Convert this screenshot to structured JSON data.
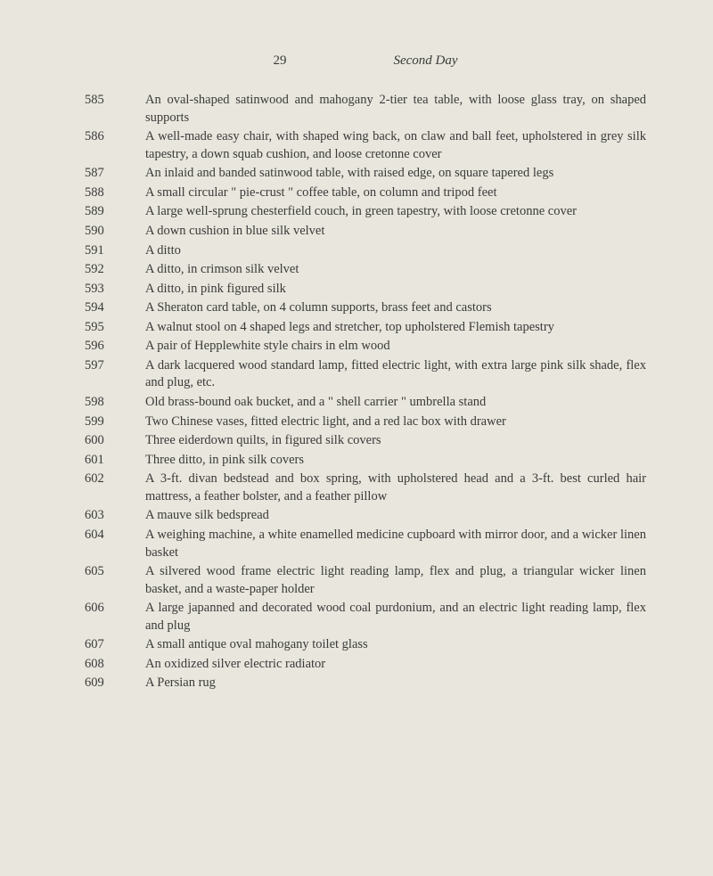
{
  "page_number": "29",
  "heading": "Second Day",
  "text_color": "#3a3a38",
  "background_color": "#e8e6dd",
  "entries": [
    {
      "lot": "585",
      "text": "An oval-shaped satinwood and mahogany 2-tier tea table, with loose glass tray, on shaped supports"
    },
    {
      "lot": "586",
      "text": "A well-made easy chair, with shaped wing back, on claw and ball feet, upholstered in grey silk tapestry, a down squab cushion, and loose cretonne cover"
    },
    {
      "lot": "587",
      "text": "An inlaid and banded satinwood table, with raised edge, on square tapered legs"
    },
    {
      "lot": "588",
      "text": "A small circular \" pie-crust \" coffee table, on column and tripod feet"
    },
    {
      "lot": "589",
      "text": "A large well-sprung chesterfield couch, in green tapestry, with loose cretonne cover"
    },
    {
      "lot": "590",
      "text": "A down cushion in blue silk velvet"
    },
    {
      "lot": "591",
      "text": "A ditto"
    },
    {
      "lot": "592",
      "text": "A ditto, in crimson silk velvet"
    },
    {
      "lot": "593",
      "text": "A ditto, in pink figured silk"
    },
    {
      "lot": "594",
      "text": "A Sheraton card table, on 4 column supports, brass feet and castors"
    },
    {
      "lot": "595",
      "text": "A walnut stool on 4 shaped legs and stretcher, top upholstered Flemish tapestry"
    },
    {
      "lot": "596",
      "text": "A pair of Hepplewhite style chairs in elm wood"
    },
    {
      "lot": "597",
      "text": "A dark lacquered wood standard lamp, fitted electric light, with extra large pink silk shade, flex and plug, etc."
    },
    {
      "lot": "598",
      "text": "Old brass-bound oak bucket, and a \" shell carrier \" umbrella stand"
    },
    {
      "lot": "599",
      "text": "Two Chinese vases, fitted electric light, and a red lac box with drawer"
    },
    {
      "lot": "600",
      "text": "Three eiderdown quilts, in figured silk covers"
    },
    {
      "lot": "601",
      "text": "Three ditto, in pink silk covers"
    },
    {
      "lot": "602",
      "text": "A 3-ft. divan bedstead and box spring, with upholstered head and a 3-ft. best curled hair mattress, a feather bolster, and a feather pillow"
    },
    {
      "lot": "603",
      "text": "A mauve silk bedspread"
    },
    {
      "lot": "604",
      "text": "A weighing machine, a white enamelled medicine cupboard with mirror door, and a wicker linen basket"
    },
    {
      "lot": "605",
      "text": "A silvered wood frame electric light reading lamp, flex and plug, a triangular wicker linen basket, and a waste-paper holder"
    },
    {
      "lot": "606",
      "text": "A large japanned and decorated wood coal purdonium, and an electric light reading lamp, flex and plug"
    },
    {
      "lot": "607",
      "text": "A small antique oval mahogany toilet glass"
    },
    {
      "lot": "608",
      "text": "An oxidized silver electric radiator"
    },
    {
      "lot": "609",
      "text": "A Persian rug"
    }
  ]
}
